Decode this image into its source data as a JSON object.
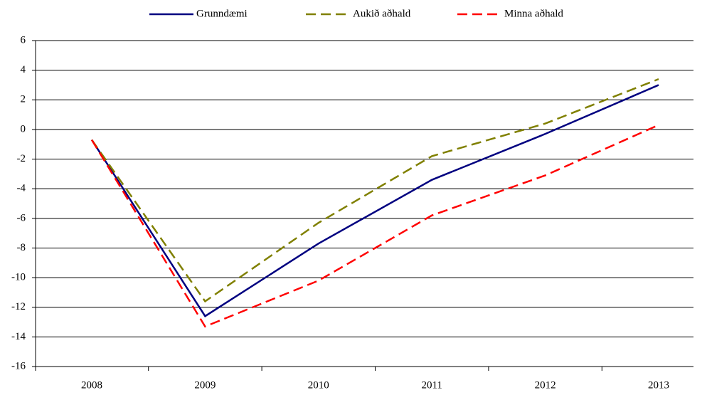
{
  "chart_data": {
    "type": "line",
    "categories": [
      "2008",
      "2009",
      "2010",
      "2011",
      "2012",
      "2013"
    ],
    "series": [
      {
        "name": "Grunndæmi",
        "color": "#000080",
        "dash": false,
        "values": [
          -0.7,
          -12.6,
          -7.7,
          -3.4,
          -0.3,
          3.0
        ]
      },
      {
        "name": "Aukið aðhald",
        "color": "#808000",
        "dash": true,
        "values": [
          -0.7,
          -11.6,
          -6.3,
          -1.8,
          0.4,
          3.4
        ]
      },
      {
        "name": "Minna aðhald",
        "color": "#ff0000",
        "dash": true,
        "values": [
          -0.7,
          -13.3,
          -10.2,
          -5.8,
          -3.1,
          0.3
        ]
      }
    ],
    "ylim": [
      -16,
      6
    ],
    "yticks": [
      -16,
      -14,
      -12,
      -10,
      -8,
      -6,
      -4,
      -2,
      0,
      2,
      4,
      6
    ],
    "grid": true,
    "legend": "top"
  }
}
